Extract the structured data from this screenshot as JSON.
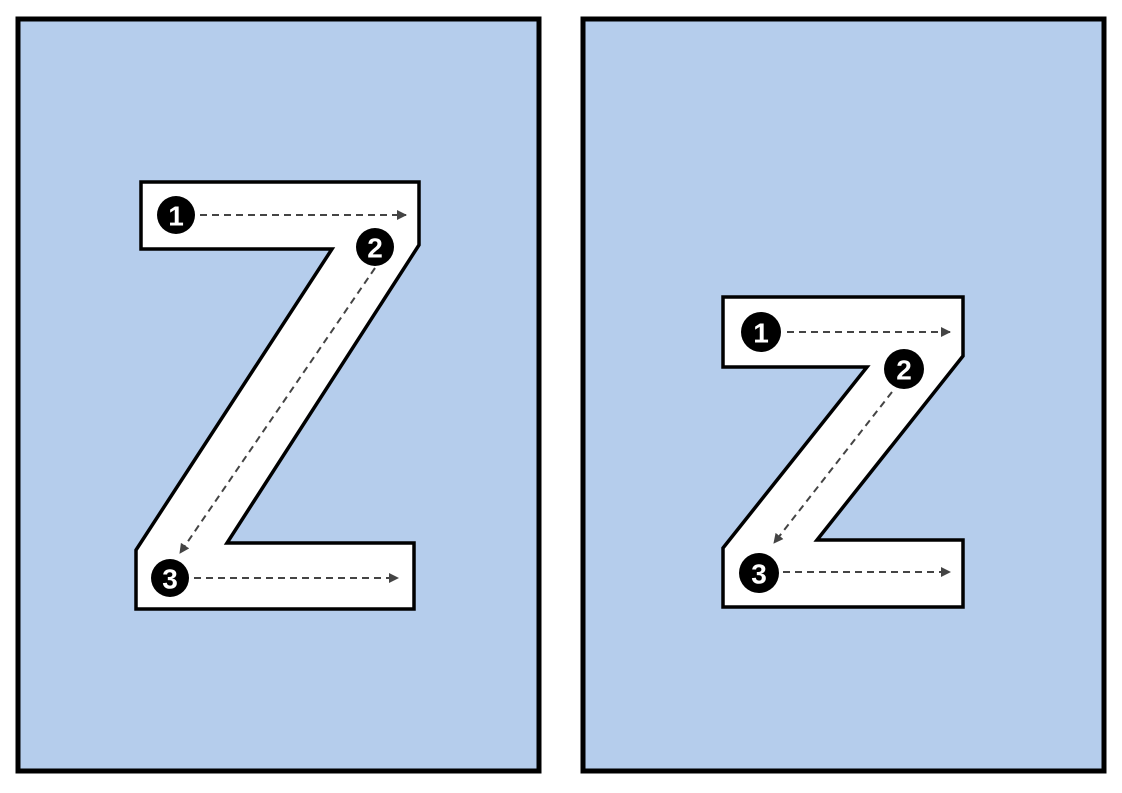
{
  "colors": {
    "panel_fill": "#b5cdec",
    "panel_border": "#000000",
    "letter_fill": "#ffffff",
    "arrow": "#444444",
    "step_marker": "#000000",
    "step_text": "#ffffff"
  },
  "panels": [
    {
      "letter": "Z",
      "case": "uppercase",
      "strokes": [
        {
          "order": "1",
          "direction": "left-to-right"
        },
        {
          "order": "2",
          "direction": "diagonal-down-left"
        },
        {
          "order": "3",
          "direction": "left-to-right"
        }
      ]
    },
    {
      "letter": "z",
      "case": "lowercase",
      "strokes": [
        {
          "order": "1",
          "direction": "left-to-right"
        },
        {
          "order": "2",
          "direction": "diagonal-down-left"
        },
        {
          "order": "3",
          "direction": "left-to-right"
        }
      ]
    }
  ]
}
